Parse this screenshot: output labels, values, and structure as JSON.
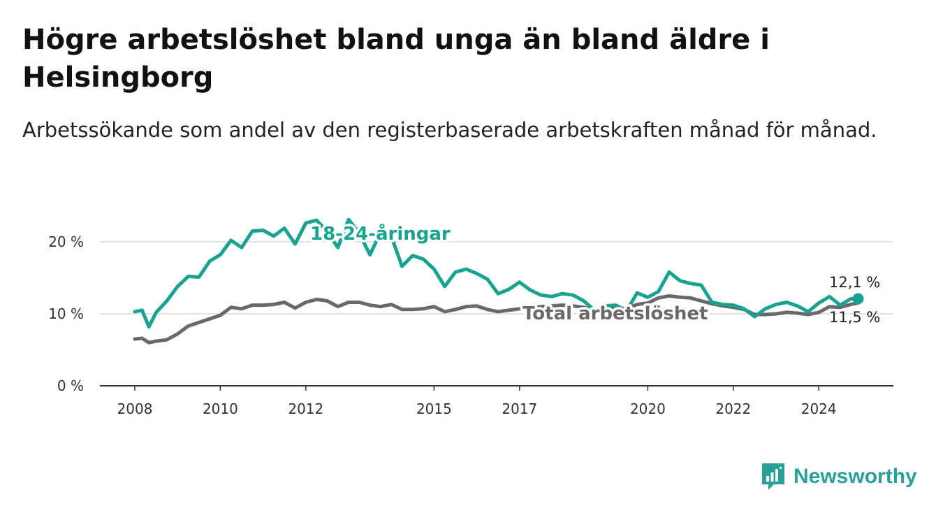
{
  "title": "Högre arbetslöshet bland unga än bland äldre i Helsingborg",
  "subtitle": "Arbetssökande som andel av den registerbaserade arbetskraften månad för månad.",
  "brand": {
    "name": "Newsworthy",
    "icon": "bar-chart-logo-icon"
  },
  "colors": {
    "youth": "#17a38f",
    "total": "#6b676b",
    "grid": "#dcdcdc",
    "axis": "#333333"
  },
  "chart_data": {
    "type": "line",
    "x_ticks": [
      2008,
      2010,
      2012,
      2015,
      2017,
      2020,
      2022,
      2024
    ],
    "y_ticks": [
      0,
      10,
      20
    ],
    "y_tick_labels": [
      "0 %",
      "10 %",
      "20 %"
    ],
    "ylim": [
      0,
      22
    ],
    "grid": true,
    "x_axis_line": true,
    "series": [
      {
        "name": "18-24-åringar",
        "color": "#17a38f",
        "end_label": "12,1 %",
        "points": [
          [
            2008.0,
            10.3
          ],
          [
            2008.17,
            10.5
          ],
          [
            2008.33,
            8.2
          ],
          [
            2008.5,
            10.2
          ],
          [
            2008.75,
            11.8
          ],
          [
            2009.0,
            13.8
          ],
          [
            2009.25,
            15.2
          ],
          [
            2009.5,
            15.1
          ],
          [
            2009.75,
            17.3
          ],
          [
            2010.0,
            18.2
          ],
          [
            2010.25,
            20.2
          ],
          [
            2010.5,
            19.2
          ],
          [
            2010.75,
            21.5
          ],
          [
            2011.0,
            21.6
          ],
          [
            2011.25,
            20.8
          ],
          [
            2011.5,
            21.9
          ],
          [
            2011.75,
            19.7
          ],
          [
            2012.0,
            22.6
          ],
          [
            2012.25,
            23.0
          ],
          [
            2012.5,
            21.4
          ],
          [
            2012.75,
            19.2
          ],
          [
            2013.0,
            23.1
          ],
          [
            2013.25,
            21.2
          ],
          [
            2013.5,
            18.2
          ],
          [
            2013.75,
            21.3
          ],
          [
            2014.0,
            20.8
          ],
          [
            2014.25,
            16.6
          ],
          [
            2014.5,
            18.1
          ],
          [
            2014.75,
            17.6
          ],
          [
            2015.0,
            16.2
          ],
          [
            2015.25,
            13.8
          ],
          [
            2015.5,
            15.8
          ],
          [
            2015.75,
            16.2
          ],
          [
            2016.0,
            15.6
          ],
          [
            2016.25,
            14.8
          ],
          [
            2016.5,
            12.8
          ],
          [
            2016.75,
            13.4
          ],
          [
            2017.0,
            14.4
          ],
          [
            2017.25,
            13.3
          ],
          [
            2017.5,
            12.6
          ],
          [
            2017.75,
            12.4
          ],
          [
            2018.0,
            12.8
          ],
          [
            2018.25,
            12.6
          ],
          [
            2018.5,
            11.8
          ],
          [
            2018.75,
            10.5
          ],
          [
            2019.0,
            11.1
          ],
          [
            2019.25,
            11.2
          ],
          [
            2019.5,
            10.4
          ],
          [
            2019.75,
            12.9
          ],
          [
            2020.0,
            12.3
          ],
          [
            2020.25,
            13.1
          ],
          [
            2020.5,
            15.8
          ],
          [
            2020.75,
            14.6
          ],
          [
            2021.0,
            14.2
          ],
          [
            2021.25,
            14.0
          ],
          [
            2021.5,
            11.6
          ],
          [
            2021.75,
            11.3
          ],
          [
            2022.0,
            11.2
          ],
          [
            2022.25,
            10.7
          ],
          [
            2022.5,
            9.6
          ],
          [
            2022.75,
            10.7
          ],
          [
            2023.0,
            11.3
          ],
          [
            2023.25,
            11.6
          ],
          [
            2023.5,
            11.1
          ],
          [
            2023.75,
            10.3
          ],
          [
            2024.0,
            11.5
          ],
          [
            2024.25,
            12.4
          ],
          [
            2024.5,
            11.2
          ],
          [
            2024.75,
            12.1
          ],
          [
            2024.92,
            12.1
          ]
        ]
      },
      {
        "name": "Total arbetslöshet",
        "color": "#6b676b",
        "end_label": "11,5 %",
        "points": [
          [
            2008.0,
            6.5
          ],
          [
            2008.17,
            6.6
          ],
          [
            2008.33,
            6.0
          ],
          [
            2008.5,
            6.2
          ],
          [
            2008.75,
            6.4
          ],
          [
            2009.0,
            7.2
          ],
          [
            2009.25,
            8.3
          ],
          [
            2009.5,
            8.8
          ],
          [
            2009.75,
            9.3
          ],
          [
            2010.0,
            9.8
          ],
          [
            2010.25,
            10.9
          ],
          [
            2010.5,
            10.7
          ],
          [
            2010.75,
            11.2
          ],
          [
            2011.0,
            11.2
          ],
          [
            2011.25,
            11.3
          ],
          [
            2011.5,
            11.6
          ],
          [
            2011.75,
            10.8
          ],
          [
            2012.0,
            11.6
          ],
          [
            2012.25,
            12.0
          ],
          [
            2012.5,
            11.8
          ],
          [
            2012.75,
            11.0
          ],
          [
            2013.0,
            11.6
          ],
          [
            2013.25,
            11.6
          ],
          [
            2013.5,
            11.2
          ],
          [
            2013.75,
            11.0
          ],
          [
            2014.0,
            11.3
          ],
          [
            2014.25,
            10.6
          ],
          [
            2014.5,
            10.6
          ],
          [
            2014.75,
            10.7
          ],
          [
            2015.0,
            11.0
          ],
          [
            2015.25,
            10.3
          ],
          [
            2015.5,
            10.6
          ],
          [
            2015.75,
            11.0
          ],
          [
            2016.0,
            11.1
          ],
          [
            2016.25,
            10.6
          ],
          [
            2016.5,
            10.3
          ],
          [
            2016.75,
            10.5
          ],
          [
            2017.0,
            10.7
          ],
          [
            2017.25,
            10.8
          ],
          [
            2017.5,
            11.0
          ],
          [
            2017.75,
            11.1
          ],
          [
            2018.0,
            11.2
          ],
          [
            2018.25,
            11.1
          ],
          [
            2018.5,
            10.9
          ],
          [
            2018.75,
            10.6
          ],
          [
            2019.0,
            10.8
          ],
          [
            2019.25,
            10.9
          ],
          [
            2019.5,
            10.7
          ],
          [
            2019.75,
            11.3
          ],
          [
            2020.0,
            11.5
          ],
          [
            2020.25,
            12.2
          ],
          [
            2020.5,
            12.5
          ],
          [
            2020.75,
            12.3
          ],
          [
            2021.0,
            12.2
          ],
          [
            2021.25,
            11.8
          ],
          [
            2021.5,
            11.4
          ],
          [
            2021.75,
            11.1
          ],
          [
            2022.0,
            10.9
          ],
          [
            2022.25,
            10.6
          ],
          [
            2022.5,
            9.9
          ],
          [
            2022.75,
            9.9
          ],
          [
            2023.0,
            10.0
          ],
          [
            2023.25,
            10.2
          ],
          [
            2023.5,
            10.1
          ],
          [
            2023.75,
            9.9
          ],
          [
            2024.0,
            10.2
          ],
          [
            2024.25,
            11.0
          ],
          [
            2024.5,
            10.9
          ],
          [
            2024.75,
            11.3
          ],
          [
            2024.92,
            11.5
          ]
        ]
      }
    ]
  }
}
